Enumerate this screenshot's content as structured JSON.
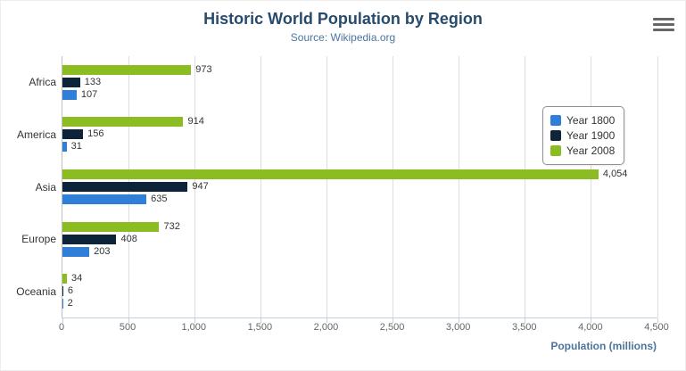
{
  "header": {
    "title": "Historic World Population by Region",
    "subtitle": "Source: Wikipedia.org"
  },
  "x_axis_title": "Population (millions)",
  "chart_data": {
    "type": "bar",
    "orientation": "horizontal",
    "title": "Historic World Population by Region",
    "subtitle": "Source: Wikipedia.org",
    "categories": [
      "Africa",
      "America",
      "Asia",
      "Europe",
      "Oceania"
    ],
    "series": [
      {
        "name": "Year 1800",
        "color": "#2f7ed8",
        "values": [
          107,
          31,
          635,
          203,
          2
        ]
      },
      {
        "name": "Year 1900",
        "color": "#0d233a",
        "values": [
          133,
          156,
          947,
          408,
          6
        ]
      },
      {
        "name": "Year 2008",
        "color": "#8bbc21",
        "values": [
          973,
          914,
          4054,
          732,
          34
        ]
      }
    ],
    "bar_order_top_to_bottom": [
      "Year 2008",
      "Year 1900",
      "Year 1800"
    ],
    "xlabel": "Population (millions)",
    "ylabel": "",
    "xlim": [
      0,
      4500
    ],
    "xticks": [
      0,
      500,
      1000,
      1500,
      2000,
      2500,
      3000,
      3500,
      4000,
      4500
    ],
    "grid": true,
    "legend_position": "right",
    "data_labels": true
  }
}
